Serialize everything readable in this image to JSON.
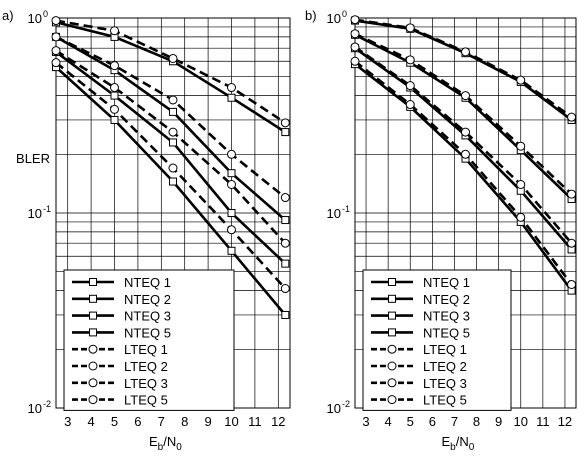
{
  "chart_data": [
    {
      "type": "line",
      "panel_label": "a)",
      "ylabel": "BLER",
      "xlabel": {
        "main": "E",
        "sub1": "b",
        "mid": "/N",
        "sub2": "0"
      },
      "yscale": "log",
      "ylim": [
        0.01,
        1
      ],
      "xlim": [
        2.5,
        12.5
      ],
      "y_ticks": [
        {
          "base": "10",
          "exp": "-2",
          "v": 0.01
        },
        {
          "base": "10",
          "exp": "-1",
          "v": 0.1
        },
        {
          "base": "10",
          "exp": "0",
          "v": 1
        }
      ],
      "x_ticks": [
        "3",
        "4",
        "5",
        "6",
        "7",
        "8",
        "9",
        "10",
        "11",
        "12"
      ],
      "grid": true,
      "legend_location": "lower-left",
      "series": [
        {
          "name": "NTEQ 1",
          "marker": "square",
          "dash": false,
          "x": [
            2.5,
            5,
            7.5,
            10,
            12.3
          ],
          "y": [
            0.95,
            0.8,
            0.6,
            0.39,
            0.26
          ]
        },
        {
          "name": "NTEQ 2",
          "marker": "square",
          "dash": false,
          "x": [
            2.5,
            5,
            7.5,
            10,
            12.3
          ],
          "y": [
            0.8,
            0.54,
            0.33,
            0.16,
            0.092
          ]
        },
        {
          "name": "NTEQ 3",
          "marker": "square",
          "dash": false,
          "x": [
            2.5,
            5,
            7.5,
            10,
            12.3
          ],
          "y": [
            0.67,
            0.4,
            0.23,
            0.1,
            0.055
          ]
        },
        {
          "name": "NTEQ 5",
          "marker": "square",
          "dash": false,
          "x": [
            2.5,
            5,
            7.5,
            10,
            12.3
          ],
          "y": [
            0.56,
            0.3,
            0.145,
            0.064,
            0.03
          ]
        },
        {
          "name": "LTEQ 1",
          "marker": "circle",
          "dash": true,
          "x": [
            2.5,
            5,
            7.5,
            10,
            12.3
          ],
          "y": [
            0.97,
            0.86,
            0.62,
            0.44,
            0.29
          ]
        },
        {
          "name": "LTEQ 2",
          "marker": "circle",
          "dash": true,
          "x": [
            2.5,
            5,
            7.5,
            10,
            12.3
          ],
          "y": [
            0.8,
            0.57,
            0.38,
            0.2,
            0.12
          ]
        },
        {
          "name": "LTEQ 3",
          "marker": "circle",
          "dash": true,
          "x": [
            2.5,
            5,
            7.5,
            10,
            12.3
          ],
          "y": [
            0.68,
            0.44,
            0.26,
            0.14,
            0.07
          ]
        },
        {
          "name": "LTEQ 5",
          "marker": "circle",
          "dash": true,
          "x": [
            2.5,
            5,
            7.5,
            10,
            12.3
          ],
          "y": [
            0.59,
            0.34,
            0.17,
            0.082,
            0.041
          ]
        }
      ]
    },
    {
      "type": "line",
      "panel_label": "b)",
      "ylabel": "",
      "xlabel": {
        "main": "E",
        "sub1": "b",
        "mid": "/N",
        "sub2": "0"
      },
      "yscale": "log",
      "ylim": [
        0.01,
        1
      ],
      "xlim": [
        2.5,
        12.5
      ],
      "y_ticks": [
        {
          "base": "10",
          "exp": "-2",
          "v": 0.01
        },
        {
          "base": "10",
          "exp": "-1",
          "v": 0.1
        },
        {
          "base": "10",
          "exp": "0",
          "v": 1
        }
      ],
      "x_ticks": [
        "3",
        "4",
        "5",
        "6",
        "7",
        "8",
        "9",
        "10",
        "11",
        "12"
      ],
      "grid": true,
      "legend_location": "lower-left",
      "series": [
        {
          "name": "NTEQ 1",
          "marker": "square",
          "dash": false,
          "x": [
            2.5,
            5,
            7.5,
            10,
            12.3
          ],
          "y": [
            0.97,
            0.88,
            0.66,
            0.47,
            0.3
          ]
        },
        {
          "name": "NTEQ 2",
          "marker": "square",
          "dash": false,
          "x": [
            2.5,
            5,
            7.5,
            10,
            12.3
          ],
          "y": [
            0.82,
            0.59,
            0.39,
            0.21,
            0.118
          ]
        },
        {
          "name": "NTEQ 3",
          "marker": "square",
          "dash": false,
          "x": [
            2.5,
            5,
            7.5,
            10,
            12.3
          ],
          "y": [
            0.7,
            0.44,
            0.25,
            0.13,
            0.065
          ]
        },
        {
          "name": "NTEQ 5",
          "marker": "square",
          "dash": false,
          "x": [
            2.5,
            5,
            7.5,
            10,
            12.3
          ],
          "y": [
            0.58,
            0.35,
            0.19,
            0.09,
            0.04
          ]
        },
        {
          "name": "LTEQ 1",
          "marker": "circle",
          "dash": true,
          "x": [
            2.5,
            5,
            7.5,
            10,
            12.3
          ],
          "y": [
            0.98,
            0.89,
            0.67,
            0.48,
            0.31
          ]
        },
        {
          "name": "LTEQ 2",
          "marker": "circle",
          "dash": true,
          "x": [
            2.5,
            5,
            7.5,
            10,
            12.3
          ],
          "y": [
            0.83,
            0.61,
            0.4,
            0.22,
            0.125
          ]
        },
        {
          "name": "LTEQ 3",
          "marker": "circle",
          "dash": true,
          "x": [
            2.5,
            5,
            7.5,
            10,
            12.3
          ],
          "y": [
            0.71,
            0.45,
            0.26,
            0.14,
            0.07
          ]
        },
        {
          "name": "LTEQ 5",
          "marker": "circle",
          "dash": true,
          "x": [
            2.5,
            5,
            7.5,
            10,
            12.3
          ],
          "y": [
            0.6,
            0.36,
            0.2,
            0.095,
            0.043
          ]
        }
      ]
    }
  ]
}
